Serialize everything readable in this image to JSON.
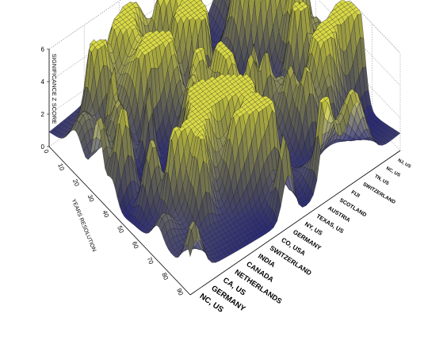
{
  "chart_data": {
    "type": "surface3d",
    "z_axis": {
      "label": "SIGNIFICANCE Z SCORE",
      "ticks": [
        "0",
        "2",
        "4",
        "6"
      ],
      "range": [
        0,
        6
      ]
    },
    "x_axis": {
      "label": "YEARS RESOLUTION",
      "ticks": [
        "0",
        "10",
        "20",
        "30",
        "40",
        "50",
        "60",
        "70",
        "80",
        "90"
      ],
      "range": [
        0,
        95
      ]
    },
    "y_axis": {
      "categories": [
        "NC, US",
        "GERMANY",
        "CA, US",
        "NETHERLANDS",
        "CANADA",
        "INDIA",
        "SWITZERLAND",
        "CO, USA",
        "GERMANY",
        "NY, US",
        "TEXAS, US",
        "AUSTRIA",
        "SCOTLAND",
        "FIJI",
        "SWITZERLAND",
        "TN, US",
        "NC, US",
        "NJ, US"
      ]
    },
    "grid": true,
    "colormap": [
      "#1c1c8e",
      "#5a5a86",
      "#8a8a78",
      "#c2c26a",
      "#ffff55"
    ],
    "note": "Surface heights are illustrative; dense surface mesh rendered procedurally."
  }
}
